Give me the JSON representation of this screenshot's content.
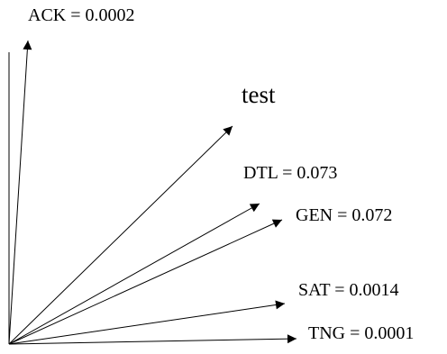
{
  "labels": {
    "ack": "ACK = 0.0002",
    "test": "test",
    "dtl": "DTL = 0.073",
    "gen": "GEN = 0.072",
    "sat": "SAT = 0.0014",
    "tng": "TNG = 0.0001"
  },
  "colors": {
    "stroke": "#000000",
    "background": "#ffffff"
  }
}
